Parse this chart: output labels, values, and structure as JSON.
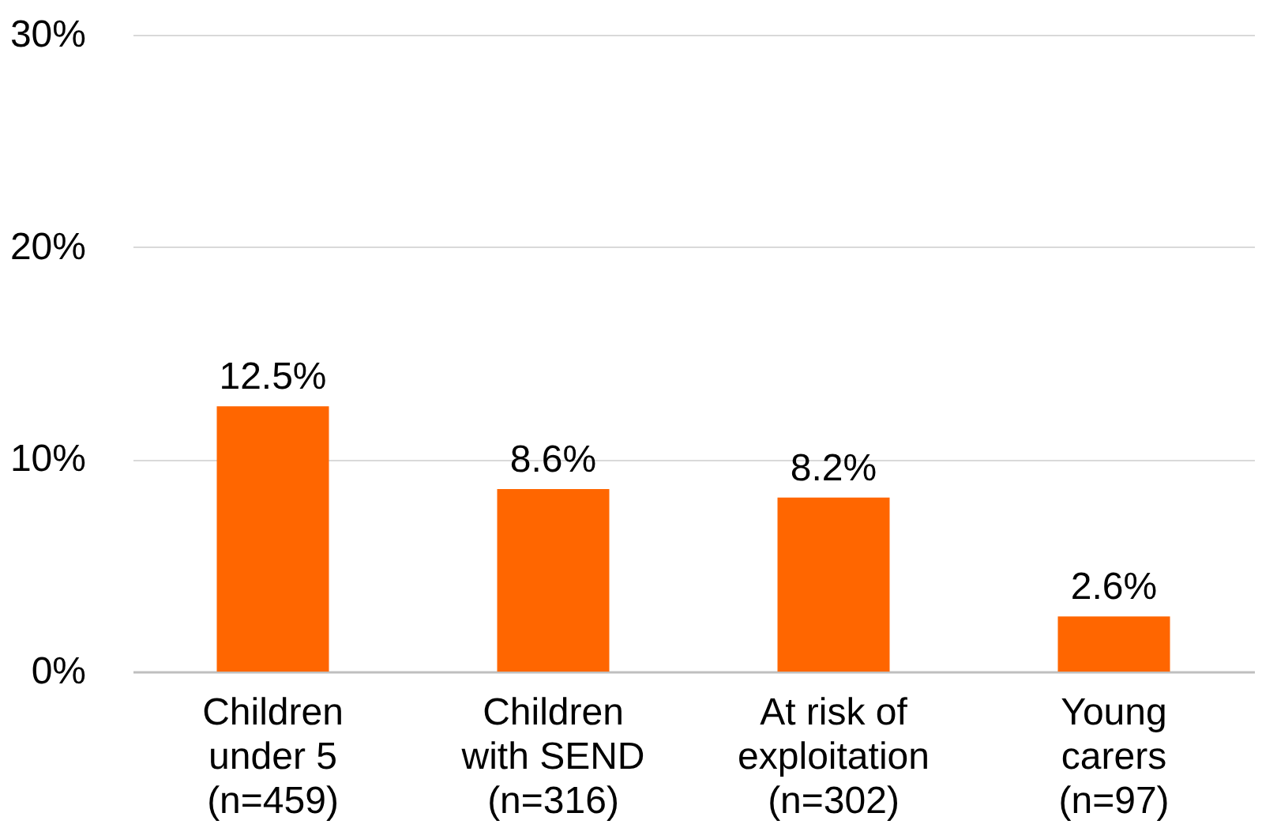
{
  "chart_data": {
    "type": "bar",
    "categories": [
      "Children\nunder 5\n(n=459)",
      "Children\nwith SEND\n(n=316)",
      "At risk of\nexploitation\n(n=302)",
      "Young\ncarers\n(n=97)"
    ],
    "values": [
      12.5,
      8.6,
      8.2,
      2.6
    ],
    "color": "#ff6600",
    "value_labels": [
      "12.5%",
      "8.6%",
      "8.2%",
      "2.6%"
    ],
    "ylim": [
      0,
      30
    ],
    "yticks": [
      {
        "value": 0,
        "label": "0%"
      },
      {
        "value": 10,
        "label": "10%"
      },
      {
        "value": 20,
        "label": "20%"
      },
      {
        "value": 30,
        "label": "30%"
      }
    ],
    "grid": "y"
  }
}
